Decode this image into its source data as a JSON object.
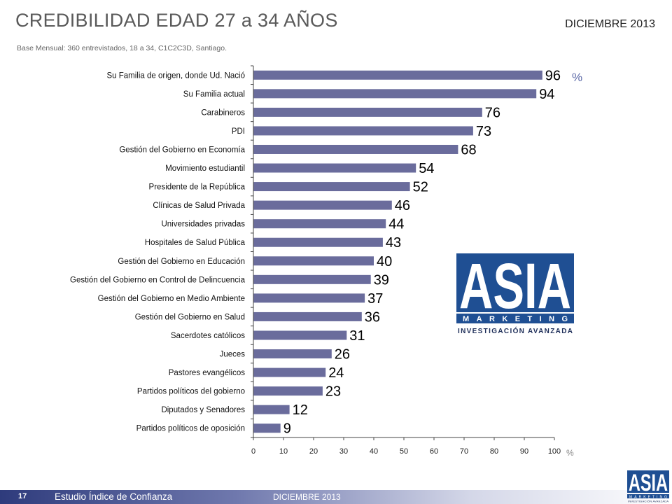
{
  "header": {
    "title": "CREDIBILIDAD EDAD 27 a 34 AÑOS",
    "subtitle": "Base Mensual: 360 entrevistados, 18 a 34, C1C2C3D, Santiago.",
    "date": "DICIEMBRE 2013"
  },
  "footer": {
    "page_number": "17",
    "study_name": "Estudio Índice de Confianza",
    "date": "DICIEMBRE 2013"
  },
  "logo": {
    "line1": "ASIA",
    "line2": "MARKETING",
    "line3": "INVESTIGACIÓN AVANZADA",
    "color": "#1f4f93"
  },
  "chart_data": {
    "type": "bar",
    "orientation": "horizontal",
    "categories": [
      "Su Familia de origen, donde Ud. Nació",
      "Su Familia actual",
      "Carabineros",
      "PDI",
      "Gestión del Gobierno en Economía",
      "Movimiento estudiantil",
      "Presidente de la República",
      "Clínicas de Salud Privada",
      "Universidades privadas",
      "Hospitales de Salud Pública",
      "Gestión del Gobierno en Educación",
      "Gestión del Gobierno en Control de Delincuencia",
      "Gestión del Gobierno en Medio Ambiente",
      "Gestión del Gobierno en Salud",
      "Sacerdotes católicos",
      "Jueces",
      "Pastores evangélicos",
      "Partidos políticos del gobierno",
      "Diputados y Senadores",
      "Partidos políticos de oposición"
    ],
    "values": [
      96,
      94,
      76,
      73,
      68,
      54,
      52,
      46,
      44,
      43,
      40,
      39,
      37,
      36,
      31,
      26,
      24,
      23,
      12,
      9
    ],
    "xlim": [
      0,
      100
    ],
    "xticks": [
      0,
      10,
      20,
      30,
      40,
      50,
      60,
      70,
      80,
      90,
      100
    ],
    "unit_top": "%",
    "unit_axis": "%",
    "bar_color": "#6a6c9c",
    "grid": false
  }
}
